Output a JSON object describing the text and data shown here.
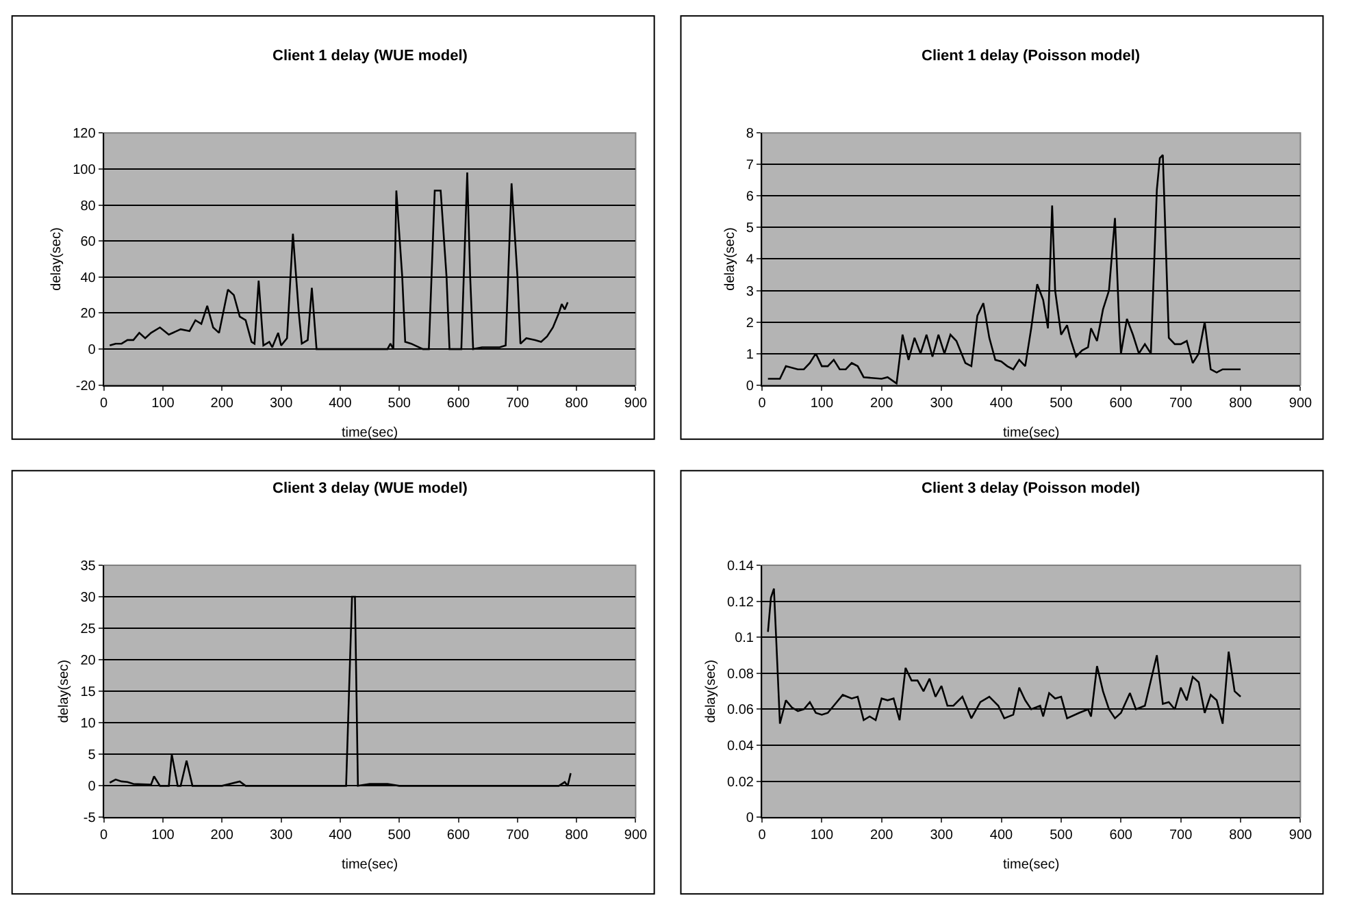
{
  "chart_data": [
    {
      "type": "line",
      "title": "Client 1 delay (WUE model)",
      "xlabel": "time(sec)",
      "ylabel": "delay(sec)",
      "xlim": [
        0,
        900
      ],
      "xticks": [
        0,
        100,
        200,
        300,
        400,
        500,
        600,
        700,
        800,
        900
      ],
      "ylim": [
        -20,
        120
      ],
      "yticks": [
        -20,
        0,
        20,
        40,
        60,
        80,
        100,
        120
      ],
      "grid": "y",
      "x": [
        10,
        20,
        30,
        40,
        50,
        60,
        70,
        80,
        95,
        110,
        130,
        145,
        155,
        165,
        175,
        185,
        195,
        210,
        220,
        230,
        240,
        250,
        255,
        262,
        270,
        280,
        285,
        295,
        300,
        310,
        320,
        330,
        335,
        345,
        352,
        360,
        400,
        480,
        485,
        490,
        495,
        505,
        510,
        520,
        540,
        550,
        560,
        570,
        580,
        585,
        600,
        605,
        615,
        620,
        625,
        640,
        670,
        680,
        690,
        700,
        705,
        715,
        730,
        740,
        750,
        760,
        770,
        775,
        780,
        785
      ],
      "series": [
        {
          "color": "#000000",
          "values": [
            2,
            3,
            3,
            5,
            5,
            9,
            6,
            9,
            12,
            8,
            11,
            10,
            16,
            14,
            24,
            12,
            9,
            33,
            30,
            18,
            16,
            4,
            3,
            38,
            2,
            4,
            1,
            9,
            2,
            6,
            64,
            20,
            3,
            5,
            34,
            0,
            0,
            0,
            3,
            0,
            88,
            40,
            4,
            3,
            0,
            0,
            88,
            88,
            40,
            0,
            0,
            0,
            98,
            40,
            0,
            1,
            1,
            2,
            92,
            40,
            3,
            6,
            5,
            4,
            7,
            12,
            20,
            25,
            22,
            26
          ]
        }
      ]
    },
    {
      "type": "line",
      "title": "Client 1 delay (Poisson model)",
      "xlabel": "time(sec)",
      "ylabel": "delay(sec)",
      "xlim": [
        0,
        900
      ],
      "xticks": [
        0,
        100,
        200,
        300,
        400,
        500,
        600,
        700,
        800,
        900
      ],
      "ylim": [
        0,
        8
      ],
      "yticks": [
        0,
        1,
        2,
        3,
        4,
        5,
        6,
        7,
        8
      ],
      "grid": "y",
      "x": [
        10,
        20,
        30,
        40,
        60,
        70,
        80,
        90,
        100,
        110,
        120,
        130,
        140,
        150,
        160,
        170,
        200,
        210,
        225,
        235,
        245,
        255,
        265,
        275,
        285,
        295,
        305,
        315,
        325,
        340,
        350,
        360,
        370,
        380,
        390,
        400,
        410,
        420,
        430,
        440,
        450,
        460,
        470,
        478,
        485,
        490,
        500,
        510,
        515,
        525,
        535,
        545,
        550,
        560,
        570,
        580,
        590,
        597,
        600,
        610,
        620,
        630,
        640,
        650,
        660,
        665,
        670,
        680,
        690,
        700,
        710,
        720,
        730,
        740,
        750,
        760,
        770,
        800
      ],
      "series": [
        {
          "color": "#000000",
          "values": [
            0.2,
            0.2,
            0.2,
            0.6,
            0.5,
            0.5,
            0.7,
            1.0,
            0.6,
            0.6,
            0.8,
            0.5,
            0.5,
            0.7,
            0.6,
            0.25,
            0.2,
            0.25,
            0.05,
            1.6,
            0.8,
            1.5,
            1.0,
            1.6,
            0.9,
            1.6,
            1.0,
            1.6,
            1.4,
            0.7,
            0.6,
            2.2,
            2.6,
            1.5,
            0.8,
            0.75,
            0.6,
            0.5,
            0.8,
            0.6,
            1.8,
            3.2,
            2.7,
            1.8,
            5.7,
            3,
            1.6,
            1.9,
            1.5,
            0.9,
            1.1,
            1.2,
            1.8,
            1.4,
            2.4,
            3,
            5.3,
            2,
            1.0,
            2.1,
            1.6,
            1.0,
            1.3,
            1.0,
            6.2,
            7.2,
            7.3,
            1.5,
            1.3,
            1.3,
            1.4,
            0.7,
            1.0,
            2.0,
            0.5,
            0.4,
            0.5,
            0.5
          ]
        }
      ]
    },
    {
      "type": "line",
      "title": "Client 3 delay (WUE model)",
      "xlabel": "time(sec)",
      "ylabel": "delay(sec)",
      "xlim": [
        0,
        900
      ],
      "xticks": [
        0,
        100,
        200,
        300,
        400,
        500,
        600,
        700,
        800,
        900
      ],
      "ylim": [
        -5,
        35
      ],
      "yticks": [
        -5,
        0,
        5,
        10,
        15,
        20,
        25,
        30,
        35
      ],
      "grid": "y",
      "x": [
        10,
        20,
        30,
        40,
        50,
        80,
        85,
        95,
        110,
        115,
        125,
        130,
        140,
        150,
        200,
        230,
        240,
        410,
        420,
        425,
        430,
        450,
        480,
        500,
        770,
        780,
        785,
        790
      ],
      "series": [
        {
          "color": "#000000",
          "values": [
            0.5,
            1,
            0.7,
            0.6,
            0.3,
            0.2,
            1.5,
            0,
            0,
            5,
            0,
            0,
            4,
            0,
            0,
            0.7,
            0,
            0,
            30,
            30,
            0,
            0.3,
            0.3,
            0,
            0,
            0.6,
            0,
            2
          ]
        }
      ]
    },
    {
      "type": "line",
      "title": "Client 3 delay (Poisson model)",
      "xlabel": "time(sec)",
      "ylabel": "delay(sec)",
      "xlim": [
        0,
        900
      ],
      "xticks": [
        0,
        100,
        200,
        300,
        400,
        500,
        600,
        700,
        800,
        900
      ],
      "ylim": [
        0,
        0.14
      ],
      "yticks": [
        0,
        0.02,
        0.04,
        0.06,
        0.08,
        0.1,
        0.12,
        0.14
      ],
      "grid": "y",
      "x": [
        10,
        15,
        20,
        25,
        30,
        40,
        50,
        60,
        70,
        80,
        90,
        100,
        110,
        120,
        135,
        150,
        160,
        170,
        180,
        190,
        200,
        210,
        220,
        230,
        240,
        250,
        260,
        270,
        280,
        290,
        300,
        310,
        320,
        335,
        350,
        365,
        380,
        395,
        405,
        420,
        430,
        440,
        450,
        465,
        470,
        480,
        490,
        500,
        510,
        530,
        545,
        550,
        560,
        570,
        580,
        590,
        600,
        615,
        625,
        640,
        660,
        670,
        680,
        690,
        700,
        710,
        720,
        730,
        740,
        750,
        760,
        770,
        780,
        790,
        800
      ],
      "series": [
        {
          "color": "#000000",
          "values": [
            0.103,
            0.122,
            0.127,
            0.09,
            0.052,
            0.065,
            0.061,
            0.059,
            0.06,
            0.064,
            0.058,
            0.057,
            0.058,
            0.062,
            0.068,
            0.066,
            0.067,
            0.054,
            0.056,
            0.054,
            0.066,
            0.065,
            0.066,
            0.054,
            0.083,
            0.076,
            0.076,
            0.07,
            0.077,
            0.067,
            0.073,
            0.062,
            0.062,
            0.067,
            0.055,
            0.064,
            0.067,
            0.062,
            0.055,
            0.057,
            0.072,
            0.065,
            0.06,
            0.062,
            0.056,
            0.069,
            0.066,
            0.067,
            0.055,
            0.058,
            0.06,
            0.056,
            0.084,
            0.07,
            0.06,
            0.055,
            0.058,
            0.069,
            0.06,
            0.062,
            0.09,
            0.063,
            0.064,
            0.06,
            0.072,
            0.065,
            0.078,
            0.075,
            0.058,
            0.068,
            0.065,
            0.052,
            0.092,
            0.07,
            0.067
          ]
        }
      ]
    }
  ]
}
